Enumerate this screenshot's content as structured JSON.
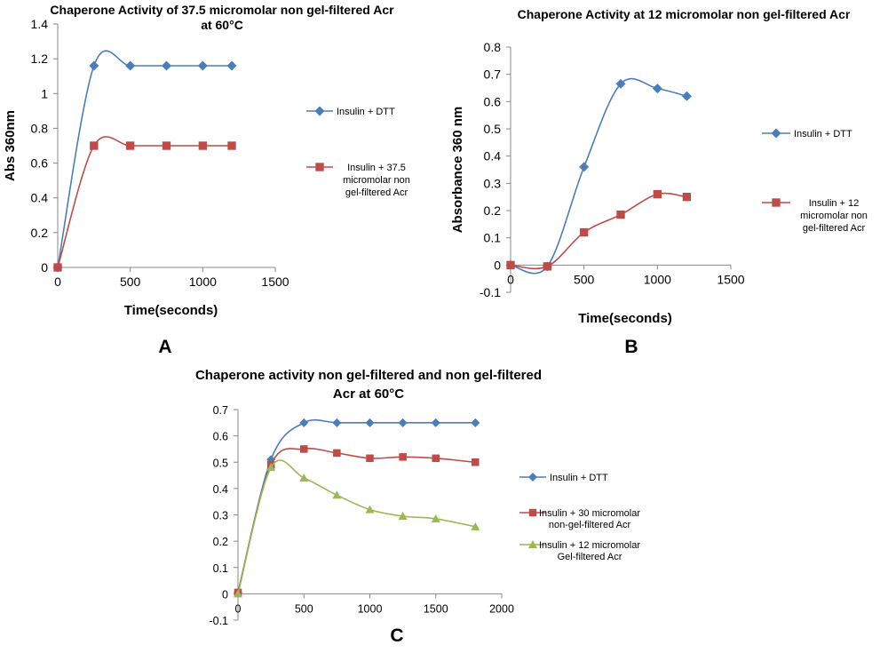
{
  "chart_data": [
    {
      "panel_label": "A",
      "type": "line",
      "title": [
        "Chaperone Activity of 37.5 micromolar non gel-filtered Acr",
        "at 60°C"
      ],
      "xlabel": "Time(seconds)",
      "ylabel": "Abs 360nm",
      "xlim": [
        0,
        1500
      ],
      "ylim": [
        0,
        1.4
      ],
      "xticks": [
        0,
        500,
        1000,
        1500
      ],
      "yticks": [
        0,
        0.2,
        0.4,
        0.6,
        0.8,
        1,
        1.2,
        1.4
      ],
      "xticklabels": [
        "0",
        "500",
        "1000",
        "1500"
      ],
      "yticklabels": [
        "0",
        "0.2",
        "0.4",
        "0.6",
        "0.8",
        "1",
        "1.2",
        "1.4"
      ],
      "grid": false,
      "legend_position": "right",
      "series": [
        {
          "name": "Insulin + DTT",
          "color": "#4a7ebb",
          "marker": "diamond",
          "x": [
            0,
            250,
            500,
            750,
            1000,
            1200
          ],
          "y": [
            0,
            1.16,
            1.16,
            1.16,
            1.16,
            1.16
          ]
        },
        {
          "name": "Insulin + 37.5 micromolar non gel-filtered Acr",
          "legend_lines": [
            "Insulin + 37.5",
            "micromolar non",
            "gel-filtered Acr"
          ],
          "color": "#be4b48",
          "marker": "square",
          "x": [
            0,
            250,
            500,
            750,
            1000,
            1200
          ],
          "y": [
            0,
            0.7,
            0.7,
            0.7,
            0.7,
            0.7
          ]
        }
      ]
    },
    {
      "panel_label": "B",
      "type": "line",
      "title": [
        "Chaperone Activity at 12 micromolar non gel-filtered Acr"
      ],
      "xlabel": "Time(seconds)",
      "ylabel": "Absorbance 360 nm",
      "xlim": [
        0,
        1500
      ],
      "ylim": [
        -0.1,
        0.8
      ],
      "xticks": [
        0,
        500,
        1000,
        1500
      ],
      "yticks": [
        -0.1,
        0,
        0.1,
        0.2,
        0.3,
        0.4,
        0.5,
        0.6,
        0.7,
        0.8
      ],
      "xticklabels": [
        "0",
        "500",
        "1000",
        "1500"
      ],
      "yticklabels": [
        "-0.1",
        "0",
        "0.1",
        "0.2",
        "0.3",
        "0.4",
        "0.5",
        "0.6",
        "0.7",
        "0.8"
      ],
      "grid": false,
      "legend_position": "right",
      "series": [
        {
          "name": "Insulin + DTT",
          "color": "#4a7ebb",
          "marker": "diamond",
          "x": [
            0,
            250,
            500,
            750,
            1000,
            1200
          ],
          "y": [
            0,
            -0.005,
            0.36,
            0.665,
            0.648,
            0.62
          ]
        },
        {
          "name": "Insulin + 12 micromolar non gel-filtered Acr",
          "legend_lines": [
            "Insulin + 12",
            "micromolar non",
            "gel-filtered Acr"
          ],
          "color": "#be4b48",
          "marker": "square",
          "x": [
            0,
            250,
            500,
            750,
            1000,
            1200
          ],
          "y": [
            0,
            -0.005,
            0.12,
            0.185,
            0.26,
            0.25
          ]
        }
      ]
    },
    {
      "panel_label": "C",
      "type": "line",
      "title": [
        "Chaperone activity non gel-filtered and non gel-filtered",
        "Acr at 60°C"
      ],
      "xlabel": "",
      "ylabel": "",
      "xlim": [
        0,
        2000
      ],
      "ylim": [
        -0.1,
        0.7
      ],
      "xticks": [
        0,
        500,
        1000,
        1500,
        2000
      ],
      "yticks": [
        -0.1,
        0,
        0.1,
        0.2,
        0.3,
        0.4,
        0.5,
        0.6,
        0.7
      ],
      "xticklabels": [
        "0",
        "500",
        "1000",
        "1500",
        "2000"
      ],
      "yticklabels": [
        "-0.1",
        "0",
        "0.1",
        "0.2",
        "0.3",
        "0.4",
        "0.5",
        "0.6",
        "0.7"
      ],
      "grid": false,
      "legend_position": "right",
      "series": [
        {
          "name": "Insulin + DTT",
          "color": "#4a7ebb",
          "marker": "diamond",
          "x": [
            0,
            250,
            500,
            750,
            1000,
            1250,
            1500,
            1800
          ],
          "y": [
            0.005,
            0.51,
            0.65,
            0.65,
            0.65,
            0.65,
            0.65,
            0.65
          ]
        },
        {
          "name": "Insulin + 30 micromolar non-gel-filtered Acr",
          "legend_lines": [
            "Insulin + 30 micromolar",
            "non-gel-filtered Acr"
          ],
          "color": "#be4b48",
          "marker": "square",
          "x": [
            0,
            250,
            500,
            750,
            1000,
            1250,
            1500,
            1800
          ],
          "y": [
            0.005,
            0.49,
            0.55,
            0.535,
            0.515,
            0.52,
            0.515,
            0.5
          ]
        },
        {
          "name": "Insulin + 12 micromolar Gel-filtered Acr",
          "legend_lines": [
            "Insulin + 12 micromolar",
            "Gel-filtered Acr"
          ],
          "color": "#98b954",
          "marker": "triangle",
          "x": [
            0,
            250,
            500,
            750,
            1000,
            1250,
            1500,
            1800
          ],
          "y": [
            0.0,
            0.48,
            0.44,
            0.375,
            0.32,
            0.295,
            0.285,
            0.255
          ]
        }
      ]
    }
  ]
}
